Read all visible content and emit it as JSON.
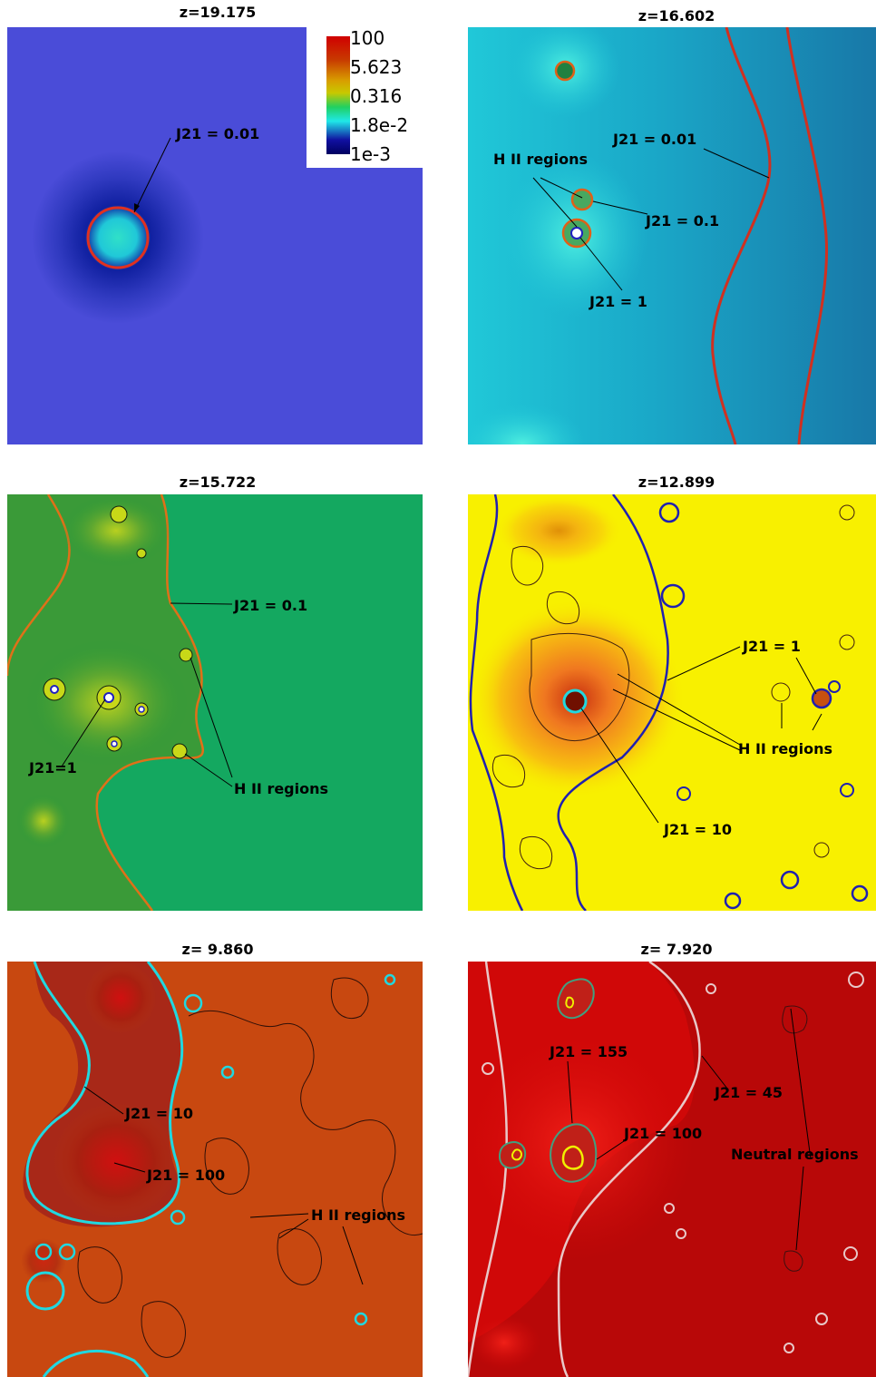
{
  "panels": [
    {
      "title": "z=19.175",
      "labels": [
        "J21 = 0.01"
      ]
    },
    {
      "title": "z=16.602",
      "labels": [
        "J21 = 0.01",
        "H II regions",
        "J21 = 0.1",
        "J21 = 1"
      ]
    },
    {
      "title": "z=15.722",
      "labels": [
        "J21 = 0.1",
        "J21=1",
        "H II regions"
      ]
    },
    {
      "title": "z=12.899",
      "labels": [
        "J21 = 1",
        "H II regions",
        "J21 = 10"
      ]
    },
    {
      "title": "z= 9.860",
      "labels": [
        "J21 = 10",
        "J21 = 100",
        "H II regions"
      ]
    },
    {
      "title": "z= 7.920",
      "labels": [
        "J21 = 155",
        "J21 = 45",
        "J21 = 100",
        "Neutral regions"
      ]
    }
  ],
  "colorbar": {
    "ticks": [
      "100",
      "5.623",
      "0.316",
      "1.8e-2",
      "1e-3"
    ]
  }
}
